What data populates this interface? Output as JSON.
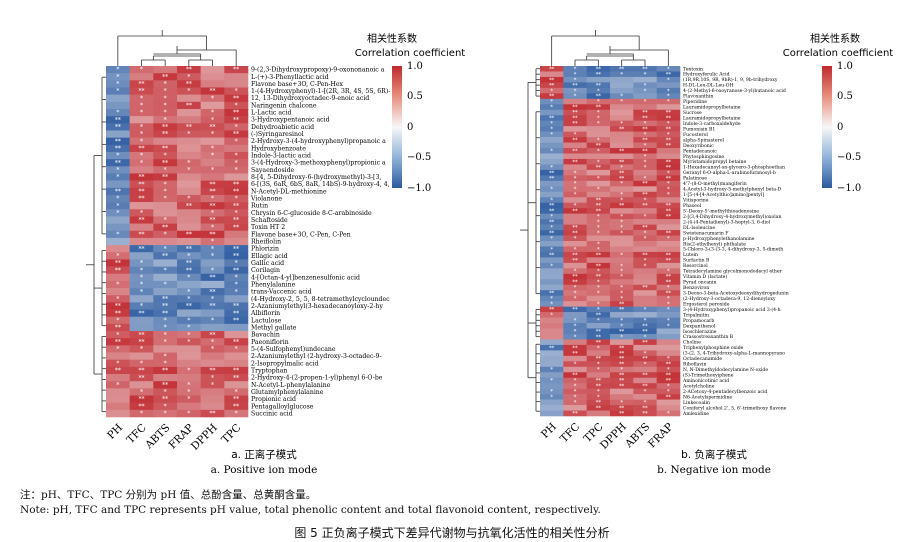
{
  "chart_data": [
    {
      "type": "heatmap",
      "legend_title_cn": "相关性系数",
      "legend_title_en": "Correlation coefficient",
      "color_scale": {
        "min": -1.0,
        "max": 1.0,
        "ticks": [
          "1.0",
          "0.5",
          "0",
          "−0.5",
          "−1.0"
        ],
        "low_color": "#2b5aa0",
        "mid_color": "#f7f7f7",
        "high_color": "#c0282e"
      },
      "columns": [
        "PH",
        "TFC",
        "ABTS",
        "FRAP",
        "DPPH",
        "TPC"
      ],
      "rows": [
        "9-(2,3-Dihydroxypropoxy)-9-oxononanoic a",
        "L-(+)-3-Phenyllactic acid",
        "Flavone base+3O, C-Pen-Hex",
        "1-(4-Hydroxyphenyl)-1-[(2R, 3R, 4S, 5S, 6R)-",
        "12, 13-Dihydroxyoctadec-9-enoic acid",
        "Naringenin chalcone",
        "L-Lactic acid",
        "3-Hydroxypentanoic acid",
        "Dehydroabietic acid",
        "(-)Syringaresinol",
        "2-Hydroxy-3-(4-hydroxyphenyl)propanoic a",
        "Hydroxybenzoate",
        "Indole-3-lactic acid",
        "3-(4-Hydroxy-3-methoxyphenyl)propionic a",
        "Sayaendoside",
        "8-[4, 5-Dihydroxy-6-(hydroxymethyl)-3-[3,",
        "6-[(3S, 6aR, 6bS, 8aR, 14bS)-9-hydroxy-4, 4,",
        "N-Acetyl-DL-methionine",
        "Violanone",
        "Rutin",
        "Chrysin 6-C-glucoside 8-C-arabinoside",
        "Schaftoside",
        "Toxin HT 2",
        "Flavone base+3O, C-Pen, C-Pen",
        "Rheiflolin",
        "Phlorizin",
        "Ellagic acid",
        "Gallic acid",
        "Corilagin",
        "4-[Octan-4-yl]benzenesulfonic acid",
        "Phenylalanine",
        "trans-Vaccenic acid",
        "(4-Hydroxy-2, 5, 5, 8-tetramethylcycloundec",
        "2-Azaniumylethyl(3-hexadecanoyloxy-2-hy",
        "Albiflorin",
        "Lactulose",
        "Methyl gallate",
        "Bavachin",
        "Paeoniflorin",
        "5-(4-Sulfophenyl)undecane",
        "2-Azaniumylethyl (2-hydroxy-3-octadec-9-",
        "2-Isopropylmalic acid",
        "Tryptophan",
        "2-Hydroxy-4-(2-propen-1-yl)phenyl 6-O-be",
        "N-Acetyl-L-phenylalanine",
        "Glutamylphenylalanine",
        "Propionic acid",
        "Pentagalloylglucose",
        "Succinic acid"
      ],
      "row_groups": [
        {
          "rows": 25,
          "sign": [
            -1,
            1,
            1,
            1,
            1,
            1
          ]
        },
        {
          "rows": 12,
          "sign": [
            1,
            -1,
            -1,
            -1,
            -1,
            -1
          ]
        },
        {
          "rows": 12,
          "sign": [
            1,
            1,
            1,
            1,
            1,
            1
          ]
        }
      ],
      "caption_cn": "a. 正离子模式",
      "caption_en": "a. Positive ion mode"
    },
    {
      "type": "heatmap",
      "legend_title_cn": "相关性系数",
      "legend_title_en": "Correlation coefficient",
      "color_scale": {
        "min": -1.0,
        "max": 1.0,
        "ticks": [
          "1.0",
          "0.5",
          "0",
          "−0.5",
          "−1.0"
        ],
        "low_color": "#2b5aa0",
        "mid_color": "#f7f7f7",
        "high_color": "#c0282e"
      },
      "columns": [
        "PH",
        "TFC",
        "TPC",
        "DPPH",
        "ABTS",
        "FRAP"
      ],
      "rows": [
        "Tentoxin",
        "Hydroxyferulic Acid",
        "(1R,9R,10S, 9R, 9bR)-1, 9, 9b-trihydroxy",
        "H-DL-Leu-DL-Leu-OH",
        "4-(2-Methyl-6-oxoyranose-3-yl)butanoic acid",
        "Flavoxanthin",
        "Piperidine",
        "Lauramidopropylbetaine",
        "Sucrose",
        "Lauramidopropylbetaine",
        "Indole-3-carboxaldehyde",
        "Fumonisin B1",
        "Fucosterol",
        "alpha-Spinasterol",
        "Deoxyribonic",
        "Pentadecanoic",
        "Phytosphingosine",
        "Myristamidopropyl betaine",
        "1-Hexadecanoyl-sn-glycero-3-phosphoethan",
        "Geranyl 6-O-alpha-L-arabinofuranosyl-b",
        "Palatinose",
        "4'7-(8-O-methyl)mangiferin",
        "4-Acetyl-3-hydroxy-5-methylphenyl beta-D",
        "1-[5-(4-[4-Acetylthio]amino]pentyl]",
        "Vitisporine",
        "Phaseol",
        "5'-Deoxy-5'-methylthioadenosine",
        "2-[(3,4-Dihydroxy-4-hydroxymethyl)oxolan",
        "2-(4-(4-Pentadienyl)-3-heptyl-3, 6-diol",
        "DL-Isoleucine",
        "Swietenacumarin F",
        "p-Hydroxyphenylethanolamine",
        "Bis(2-ethylhexyl) phthalate",
        "5-Chloro-3-(3-(3-3, 4-dihydroxy-3, 5-dimeth",
        "Lutein",
        "Surfactin B",
        "Resorcinol",
        "Tetradecylamine glycolmonododecyl ether",
        "Vitamin D (lactate)",
        "Pyrad oncanin",
        "Benzoviron",
        "3-Deoxo-3-beta-Acetoxydeoxydihydrogedunin",
        "(2-Hydroxy-3-octadeca-9, 12-dienoyloxy",
        "Ergosterol peroxide",
        "3-(4-Hydroxyphenyl)propanoic acid 3-(4-h",
        "Tripalmitin",
        "Propamocarb",
        "Dexpanthenol",
        "Isoschlerazine",
        "Crassostreaxanthin B",
        "Choline",
        "Triphenylphosphine oxide",
        "(3-(2, 3, 4-Trihydroxy-alpha-L-mannopyrano",
        "Octadecanamide",
        "Riboflavin",
        "N, N-Dimethyldodecylamine N-oxide",
        "(S)-Trimethoxyiphene",
        "Aminonicotinic acid",
        "Acetylcholine",
        "2-ACetoxy-4-pentadecylbenzoic acid",
        "N6-Acetylspermidine",
        "Linkecoalin",
        "Coniferyl alcohol 2', 5, 6'-trimethoxy flavone",
        "Amlexidine"
      ],
      "row_groups": [
        {
          "rows": 6,
          "sign": [
            1,
            -1,
            -1,
            -1,
            -1,
            -1
          ]
        },
        {
          "rows": 38,
          "sign": [
            -1,
            1,
            1,
            1,
            1,
            1
          ]
        },
        {
          "rows": 6,
          "sign": [
            1,
            -1,
            -1,
            -1,
            -1,
            -1
          ]
        },
        {
          "rows": 14,
          "sign": [
            -1,
            1,
            1,
            1,
            1,
            1
          ]
        }
      ],
      "caption_cn": "b. 负离子模式",
      "caption_en": "b. Negative ion mode"
    }
  ],
  "note_cn": "注：pH、TFC、TPC 分别为 pH 值、总酚含量、总黄酮含量。",
  "note_en": "Note: pH, TFC and TPC represents pH value, total phenolic content and total flavonoid content, respectively.",
  "figure_caption": "图 5   正负离子模式下差异代谢物与抗氧化活性的相关性分析"
}
